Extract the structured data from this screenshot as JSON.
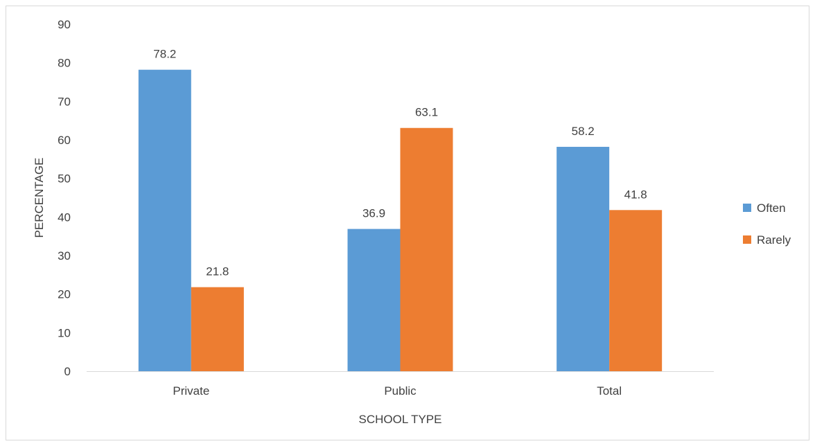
{
  "chart_data": {
    "type": "bar",
    "categories": [
      "Private",
      "Public",
      "Total"
    ],
    "series": [
      {
        "name": "Often",
        "values": [
          78.2,
          36.9,
          58.2
        ],
        "color": "#5b9bd5"
      },
      {
        "name": "Rarely",
        "values": [
          21.8,
          63.1,
          41.8
        ],
        "color": "#ed7d31"
      }
    ],
    "data_labels": [
      [
        "78.2",
        "36.9",
        "58.2"
      ],
      [
        "21.8",
        "63.1",
        "41.8"
      ]
    ],
    "title": "",
    "xlabel": "SCHOOL TYPE",
    "ylabel": "PERCENTAGE",
    "ylim": [
      0,
      90
    ],
    "yticks": [
      0,
      10,
      20,
      30,
      40,
      50,
      60,
      70,
      80,
      90
    ],
    "ytick_labels": [
      "0",
      "10",
      "20",
      "30",
      "40",
      "50",
      "60",
      "70",
      "80",
      "90"
    ],
    "grid": false,
    "legend_position": "right"
  }
}
